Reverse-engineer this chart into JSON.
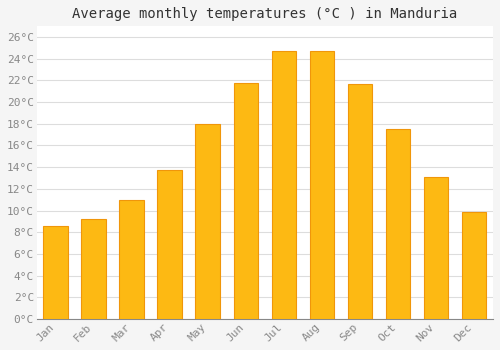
{
  "title": "Average monthly temperatures (°C ) in Manduria",
  "months": [
    "Jan",
    "Feb",
    "Mar",
    "Apr",
    "May",
    "Jun",
    "Jul",
    "Aug",
    "Sep",
    "Oct",
    "Nov",
    "Dec"
  ],
  "temperatures": [
    8.6,
    9.2,
    11.0,
    13.7,
    18.0,
    21.8,
    24.7,
    24.7,
    21.7,
    17.5,
    13.1,
    9.9
  ],
  "bar_color_top": "#FDB913",
  "bar_color_bottom": "#F0960A",
  "background_color": "#F5F5F5",
  "plot_bg_color": "#FFFFFF",
  "grid_color": "#DDDDDD",
  "ylim": [
    0,
    27
  ],
  "ytick_step": 2,
  "title_fontsize": 10,
  "tick_fontsize": 8,
  "tick_color": "#888888",
  "title_color": "#333333",
  "font_family": "monospace",
  "bar_width": 0.65
}
